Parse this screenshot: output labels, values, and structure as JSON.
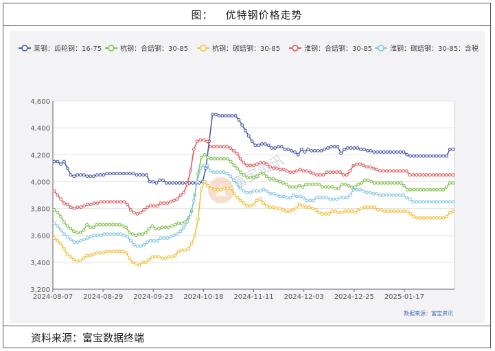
{
  "header": {
    "prefix": "图：",
    "title": "优特钢价格走势"
  },
  "footer": {
    "source": "资料来源：富宝数据终端"
  },
  "chart_data": {
    "type": "line",
    "title": "优特钢价格走势",
    "xlabel": "",
    "ylabel": "",
    "ylim": [
      3200,
      4600
    ],
    "yticks": [
      "3,200",
      "3,400",
      "3,600",
      "3,800",
      "4,000",
      "4,200",
      "4,400",
      "4,600"
    ],
    "xtick_labels": [
      "2024-08-07",
      "2024-08-29",
      "2024-09-23",
      "2024-10-18",
      "2024-11-11",
      "2024-12-03",
      "2024-12-25",
      "2025-01-17"
    ],
    "legend_position": "top",
    "source_note": "数据来源：富宝资讯",
    "watermark": "富宝资讯",
    "series": [
      {
        "name": "莱钢：齿轮钢：16-75",
        "color": "#4a5aa8",
        "values": [
          4150,
          4150,
          4130,
          4150,
          4100,
          4050,
          4040,
          4050,
          4050,
          4050,
          4040,
          4040,
          4040,
          4050,
          4050,
          4050,
          4060,
          4060,
          4060,
          4060,
          4060,
          4060,
          4060,
          4060,
          4060,
          4050,
          4050,
          4050,
          4050,
          4000,
          4000,
          3990,
          4010,
          4010,
          3990,
          3990,
          3990,
          3990,
          3990,
          3990,
          3990,
          3990,
          3990,
          3990,
          3990,
          4000,
          4100,
          4300,
          4500,
          4500,
          4490,
          4490,
          4490,
          4490,
          4490,
          4490,
          4460,
          4420,
          4380,
          4340,
          4300,
          4270,
          4270,
          4280,
          4280,
          4270,
          4250,
          4250,
          4260,
          4260,
          4240,
          4240,
          4230,
          4220,
          4200,
          4240,
          4220,
          4240,
          4230,
          4230,
          4230,
          4230,
          4240,
          4250,
          4260,
          4260,
          4260,
          4210,
          4240,
          4250,
          4250,
          4250,
          4250,
          4240,
          4240,
          4230,
          4230,
          4220,
          4220,
          4220,
          4220,
          4220,
          4220,
          4220,
          4220,
          4220,
          4220,
          4200,
          4190,
          4190,
          4190,
          4190,
          4190,
          4190,
          4190,
          4190,
          4190,
          4190,
          4190,
          4190,
          4240,
          4240
        ]
      },
      {
        "name": "杭钢：合结钢：30-85",
        "color": "#7ec04a",
        "values": [
          3790,
          3770,
          3740,
          3700,
          3670,
          3650,
          3630,
          3620,
          3620,
          3640,
          3680,
          3660,
          3660,
          3680,
          3680,
          3680,
          3680,
          3680,
          3680,
          3680,
          3680,
          3670,
          3660,
          3620,
          3610,
          3600,
          3610,
          3610,
          3620,
          3650,
          3670,
          3650,
          3650,
          3660,
          3660,
          3660,
          3670,
          3680,
          3690,
          3690,
          3700,
          3730,
          3780,
          3900,
          4060,
          4180,
          4200,
          4180,
          4170,
          4170,
          4170,
          4170,
          4170,
          4170,
          4150,
          4120,
          4100,
          4070,
          4050,
          4030,
          4030,
          4030,
          4040,
          4060,
          4060,
          4040,
          4020,
          4020,
          4010,
          4000,
          3990,
          3980,
          3960,
          3960,
          3960,
          3970,
          3960,
          3980,
          3980,
          3980,
          3980,
          3980,
          3960,
          3960,
          3960,
          3960,
          3950,
          3950,
          3980,
          3980,
          3970,
          3960,
          3960,
          3980,
          3990,
          4010,
          4010,
          4000,
          3990,
          3990,
          3990,
          3990,
          3990,
          3990,
          3990,
          3990,
          3990,
          3970,
          3940,
          3940,
          3940,
          3940,
          3940,
          3940,
          3940,
          3940,
          3940,
          3940,
          3940,
          3940,
          3960,
          3990,
          3990
        ]
      },
      {
        "name": "杭钢：碳结钢：30-85",
        "color": "#f2be3a",
        "values": [
          3580,
          3560,
          3540,
          3500,
          3460,
          3440,
          3420,
          3410,
          3410,
          3430,
          3450,
          3450,
          3460,
          3470,
          3470,
          3470,
          3480,
          3480,
          3480,
          3480,
          3480,
          3480,
          3470,
          3430,
          3400,
          3390,
          3380,
          3400,
          3400,
          3420,
          3440,
          3440,
          3440,
          3430,
          3430,
          3440,
          3440,
          3450,
          3480,
          3490,
          3490,
          3500,
          3540,
          3600,
          3720,
          3950,
          4000,
          3970,
          3950,
          3940,
          3940,
          3940,
          3950,
          3950,
          3950,
          3910,
          3880,
          3860,
          3840,
          3820,
          3820,
          3830,
          3860,
          3870,
          3840,
          3820,
          3810,
          3810,
          3800,
          3800,
          3790,
          3780,
          3780,
          3790,
          3800,
          3830,
          3820,
          3810,
          3810,
          3800,
          3790,
          3770,
          3760,
          3760,
          3760,
          3780,
          3780,
          3770,
          3770,
          3780,
          3780,
          3780,
          3770,
          3790,
          3800,
          3810,
          3810,
          3810,
          3810,
          3790,
          3790,
          3780,
          3780,
          3780,
          3780,
          3780,
          3780,
          3780,
          3780,
          3760,
          3740,
          3730,
          3730,
          3730,
          3730,
          3730,
          3730,
          3730,
          3730,
          3730,
          3740,
          3770,
          3780
        ]
      },
      {
        "name": "淮钢：合结钢：30-85",
        "color": "#e05a5a",
        "values": [
          3930,
          3900,
          3870,
          3840,
          3830,
          3810,
          3800,
          3810,
          3810,
          3820,
          3830,
          3830,
          3840,
          3840,
          3850,
          3850,
          3850,
          3850,
          3850,
          3850,
          3850,
          3850,
          3830,
          3790,
          3770,
          3760,
          3770,
          3790,
          3810,
          3820,
          3820,
          3820,
          3840,
          3840,
          3840,
          3850,
          3860,
          3870,
          3900,
          3920,
          3980,
          4080,
          4240,
          4300,
          4310,
          4310,
          4300,
          4260,
          4260,
          4260,
          4260,
          4260,
          4260,
          4250,
          4230,
          4210,
          4170,
          4140,
          4120,
          4120,
          4120,
          4130,
          4140,
          4140,
          4130,
          4110,
          4100,
          4100,
          4090,
          4090,
          4080,
          4070,
          4070,
          4080,
          4090,
          4080,
          4080,
          4070,
          4060,
          4050,
          4050,
          4050,
          4070,
          4070,
          4070,
          4070,
          4070,
          4050,
          4050,
          4080,
          4120,
          4130,
          4130,
          4120,
          4110,
          4110,
          4100,
          4090,
          4080,
          4080,
          4080,
          4080,
          4080,
          4080,
          4080,
          4080,
          4080,
          4050,
          4050,
          4050,
          4050,
          4050,
          4050,
          4050,
          4050,
          4050,
          4050,
          4050,
          4050,
          4050,
          4050
        ]
      },
      {
        "name": "淮钢：碳结钢：30-85：含税",
        "color": "#7cc6e0",
        "values": [
          3690,
          3670,
          3640,
          3610,
          3590,
          3570,
          3550,
          3550,
          3560,
          3570,
          3580,
          3590,
          3600,
          3600,
          3600,
          3610,
          3610,
          3610,
          3610,
          3610,
          3610,
          3600,
          3590,
          3560,
          3530,
          3520,
          3520,
          3530,
          3550,
          3560,
          3560,
          3560,
          3580,
          3580,
          3580,
          3590,
          3600,
          3610,
          3630,
          3660,
          3700,
          3760,
          3860,
          4000,
          4100,
          4120,
          4120,
          4080,
          4070,
          4070,
          4070,
          4070,
          4060,
          4040,
          4010,
          3980,
          3950,
          3930,
          3920,
          3920,
          3930,
          3930,
          3930,
          3940,
          3930,
          3910,
          3910,
          3900,
          3890,
          3890,
          3880,
          3880,
          3900,
          3890,
          3890,
          3880,
          3860,
          3860,
          3860,
          3880,
          3880,
          3880,
          3880,
          3870,
          3870,
          3870,
          3880,
          3880,
          3880,
          3900,
          3940,
          3940,
          3940,
          3930,
          3920,
          3920,
          3910,
          3910,
          3900,
          3900,
          3900,
          3900,
          3900,
          3900,
          3900,
          3900,
          3880,
          3870,
          3850,
          3850,
          3850,
          3850,
          3850,
          3850,
          3850,
          3850,
          3850,
          3850,
          3850,
          3850,
          3850
        ]
      }
    ]
  }
}
